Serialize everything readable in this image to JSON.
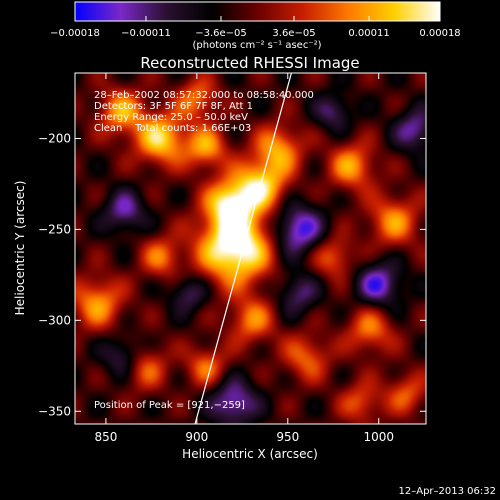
{
  "chart_data": {
    "type": "heatmap",
    "title": "Reconstructed RHESSI Image",
    "xlabel": "Heliocentric X (arcsec)",
    "ylabel": "Heliocentric Y (arcsec)",
    "xlim": [
      833,
      1026
    ],
    "ylim": [
      -357,
      -164
    ],
    "x_ticks": [
      850,
      900,
      950,
      1000
    ],
    "y_ticks": [
      -200,
      -250,
      -300,
      -350
    ],
    "x_tick_labels": [
      "850",
      "900",
      "950",
      "1000"
    ],
    "y_tick_labels": [
      "−200",
      "−250",
      "−300",
      "−350"
    ],
    "colorbar": {
      "min": -0.00018,
      "max": 0.00018,
      "tick_values": [
        -0.00018,
        -0.00011,
        -3.6e-05,
        3.6e-05,
        0.00011,
        0.00018
      ],
      "tick_labels": [
        "−0.00018",
        "−0.00011",
        "−3.6e−05",
        "3.6e−05",
        "0.00011",
        "0.00018"
      ],
      "unit_label": "(photons cm⁻² s⁻¹ asec⁻²)",
      "colors": [
        "#0000ff",
        "#7b28c8",
        "#2a1030",
        "#000000",
        "#6a0000",
        "#c81e00",
        "#ff7a00",
        "#ffd000",
        "#ffffff"
      ]
    },
    "annotations": [
      "28–Feb–2002 08:57:32.000 to 08:58:40.000",
      "Detectors: 3F 5F 6F 7F 8F, Att 1",
      "Energy Range: 25.0 – 50.0 keV",
      "Clean    Total counts: 1.66E+03",
      "Position of Peak = [921,−259]"
    ],
    "peak": {
      "x": 921,
      "y": -259
    },
    "limb_line": {
      "x": [
        899,
        952
      ],
      "y": [
        -357,
        -164
      ]
    },
    "sources": [
      {
        "x": 921,
        "y": -259,
        "sigma": 14,
        "amp": 1.3
      },
      {
        "x": 918,
        "y": -235,
        "sigma": 9,
        "amp": 0.9
      },
      {
        "x": 935,
        "y": -225,
        "sigma": 10,
        "amp": 0.9
      },
      {
        "x": 945,
        "y": -205,
        "sigma": 9,
        "amp": 0.7
      },
      {
        "x": 880,
        "y": -200,
        "sigma": 10,
        "amp": 0.9
      },
      {
        "x": 858,
        "y": -185,
        "sigma": 9,
        "amp": 0.7
      },
      {
        "x": 900,
        "y": -178,
        "sigma": 8,
        "amp": 0.6
      },
      {
        "x": 905,
        "y": -205,
        "sigma": 8,
        "amp": 0.7
      },
      {
        "x": 985,
        "y": -215,
        "sigma": 9,
        "amp": 0.7
      },
      {
        "x": 1008,
        "y": -245,
        "sigma": 10,
        "amp": 0.65
      },
      {
        "x": 975,
        "y": -265,
        "sigma": 8,
        "amp": 0.55
      },
      {
        "x": 845,
        "y": -290,
        "sigma": 10,
        "amp": 0.7
      },
      {
        "x": 870,
        "y": -325,
        "sigma": 9,
        "amp": 0.6
      },
      {
        "x": 905,
        "y": -325,
        "sigma": 8,
        "amp": 0.55
      },
      {
        "x": 930,
        "y": -300,
        "sigma": 9,
        "amp": 0.6
      },
      {
        "x": 960,
        "y": -320,
        "sigma": 9,
        "amp": 0.55
      },
      {
        "x": 995,
        "y": -305,
        "sigma": 9,
        "amp": 0.6
      },
      {
        "x": 1015,
        "y": -340,
        "sigma": 8,
        "amp": 0.5
      },
      {
        "x": 990,
        "y": -345,
        "sigma": 8,
        "amp": 0.5
      },
      {
        "x": 880,
        "y": -265,
        "sigma": 8,
        "amp": 0.55
      },
      {
        "x": 860,
        "y": -240,
        "sigma": 8,
        "amp": -0.6
      },
      {
        "x": 955,
        "y": -250,
        "sigma": 10,
        "amp": -0.8
      },
      {
        "x": 1000,
        "y": -280,
        "sigma": 9,
        "amp": -0.7
      },
      {
        "x": 860,
        "y": -320,
        "sigma": 8,
        "amp": -0.6
      },
      {
        "x": 920,
        "y": -345,
        "sigma": 9,
        "amp": -0.7
      },
      {
        "x": 955,
        "y": -285,
        "sigma": 8,
        "amp": -0.5
      },
      {
        "x": 1020,
        "y": -195,
        "sigma": 8,
        "amp": -0.6
      },
      {
        "x": 895,
        "y": -285,
        "sigma": 7,
        "amp": -0.5
      },
      {
        "x": 975,
        "y": -185,
        "sigma": 7,
        "amp": -0.5
      }
    ]
  },
  "footer": {
    "timestamp": "12–Apr–2013 06:32"
  }
}
